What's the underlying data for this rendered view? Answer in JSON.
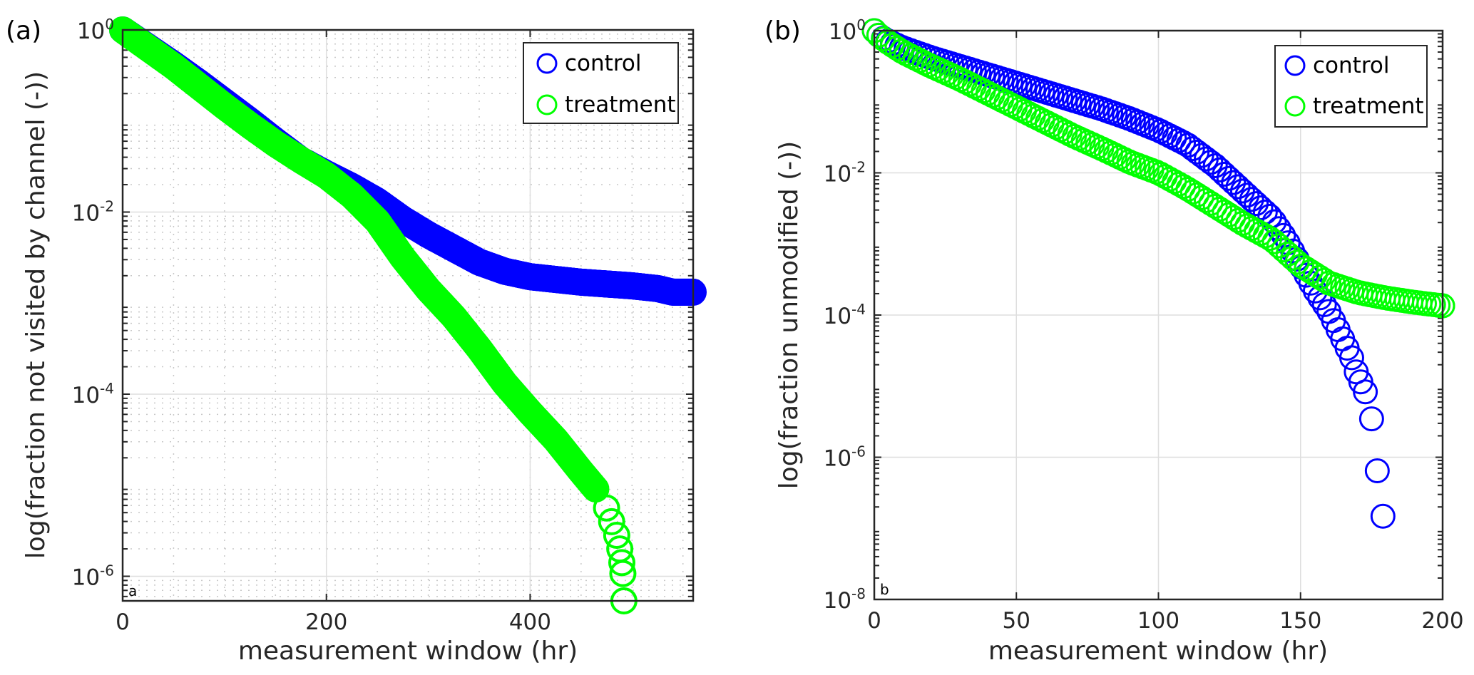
{
  "chart_data": [
    {
      "id": "a",
      "type": "scatter",
      "panel_label": "(a)",
      "corner_label": "a",
      "title": "",
      "xlabel": "measurement window (hr)",
      "ylabel": "log(fraction not visited by channel (-))",
      "xlim": [
        0,
        560
      ],
      "xticks": [
        0,
        200,
        400
      ],
      "xtick_labels": [
        "0",
        "200",
        "400"
      ],
      "yscale": "log",
      "ylim_log10": [
        -6.27,
        0
      ],
      "yticks_log10": [
        0,
        -2,
        -4,
        -6
      ],
      "ytick_labels": [
        {
          "base": "10",
          "exp": "0"
        },
        {
          "base": "10",
          "exp": "-2"
        },
        {
          "base": "10",
          "exp": "-4"
        },
        {
          "base": "10",
          "exp": "-6"
        }
      ],
      "grid": "major and minor (dotted minor)",
      "minor_x_step": 50,
      "legend_position": "top-right",
      "series": [
        {
          "name": "control",
          "color": "#0000ff",
          "marker": "open-circle",
          "x": [
            0,
            25,
            50,
            75,
            100,
            125,
            150,
            175,
            200,
            225,
            250,
            275,
            300,
            325,
            350,
            375,
            400,
            425,
            450,
            475,
            500,
            525,
            540,
            560
          ],
          "log10_y": [
            0,
            -0.19,
            -0.38,
            -0.58,
            -0.79,
            -1.0,
            -1.22,
            -1.43,
            -1.58,
            -1.72,
            -1.88,
            -2.08,
            -2.25,
            -2.4,
            -2.55,
            -2.65,
            -2.71,
            -2.74,
            -2.77,
            -2.79,
            -2.81,
            -2.84,
            -2.88,
            -2.88
          ]
        },
        {
          "name": "treatment",
          "color": "#00ff00",
          "marker": "open-circle",
          "x": [
            0,
            25,
            50,
            75,
            100,
            125,
            150,
            175,
            200,
            225,
            250,
            275,
            300,
            325,
            350,
            375,
            400,
            425,
            450,
            465,
            475,
            480,
            485,
            488,
            490,
            491,
            492
          ],
          "log10_y": [
            0,
            -0.2,
            -0.4,
            -0.62,
            -0.84,
            -1.05,
            -1.25,
            -1.43,
            -1.6,
            -1.82,
            -2.1,
            -2.5,
            -2.85,
            -3.15,
            -3.5,
            -3.88,
            -4.2,
            -4.5,
            -4.85,
            -5.05,
            -5.25,
            -5.4,
            -5.55,
            -5.7,
            -5.85,
            -5.97,
            -6.27
          ]
        }
      ]
    },
    {
      "id": "b",
      "type": "scatter",
      "panel_label": "(b)",
      "corner_label": "b",
      "title": "",
      "xlabel": "measurement window (hr)",
      "ylabel": "log(fraction unmodified (-))",
      "xlim": [
        0,
        200
      ],
      "xticks": [
        0,
        50,
        100,
        150,
        200
      ],
      "xtick_labels": [
        "0",
        "50",
        "100",
        "150",
        "200"
      ],
      "yscale": "log",
      "ylim_log10": [
        -8,
        0
      ],
      "yticks_log10": [
        0,
        -2,
        -4,
        -6,
        -8
      ],
      "ytick_labels": [
        {
          "base": "10",
          "exp": "0"
        },
        {
          "base": "10",
          "exp": "-2"
        },
        {
          "base": "10",
          "exp": "-4"
        },
        {
          "base": "10",
          "exp": "-6"
        },
        {
          "base": "10",
          "exp": "-8"
        }
      ],
      "grid": "major only",
      "legend_position": "top-right",
      "series": [
        {
          "name": "control",
          "color": "#0000ff",
          "marker": "open-circle",
          "x": [
            0,
            2,
            5,
            10,
            20,
            30,
            40,
            50,
            60,
            70,
            80,
            90,
            100,
            110,
            120,
            130,
            140,
            145,
            150,
            155,
            160,
            165,
            168,
            170,
            172,
            173,
            175,
            177,
            179
          ],
          "log10_y": [
            0,
            -0.08,
            -0.15,
            -0.24,
            -0.38,
            -0.5,
            -0.62,
            -0.74,
            -0.86,
            -0.98,
            -1.1,
            -1.24,
            -1.4,
            -1.6,
            -1.9,
            -2.27,
            -2.64,
            -2.94,
            -3.3,
            -3.65,
            -3.95,
            -4.35,
            -4.6,
            -4.85,
            -5.0,
            -5.1,
            -5.46,
            -6.19,
            -6.83
          ]
        },
        {
          "name": "treatment",
          "color": "#00ff00",
          "marker": "open-circle",
          "x": [
            0,
            2,
            5,
            10,
            20,
            30,
            40,
            50,
            60,
            70,
            80,
            90,
            100,
            110,
            120,
            130,
            140,
            150,
            160,
            170,
            180,
            190,
            200
          ],
          "log10_y": [
            0,
            -0.08,
            -0.17,
            -0.3,
            -0.5,
            -0.68,
            -0.88,
            -1.08,
            -1.28,
            -1.48,
            -1.66,
            -1.85,
            -2.0,
            -2.22,
            -2.47,
            -2.72,
            -2.94,
            -3.3,
            -3.55,
            -3.68,
            -3.76,
            -3.82,
            -3.87
          ]
        }
      ]
    }
  ]
}
